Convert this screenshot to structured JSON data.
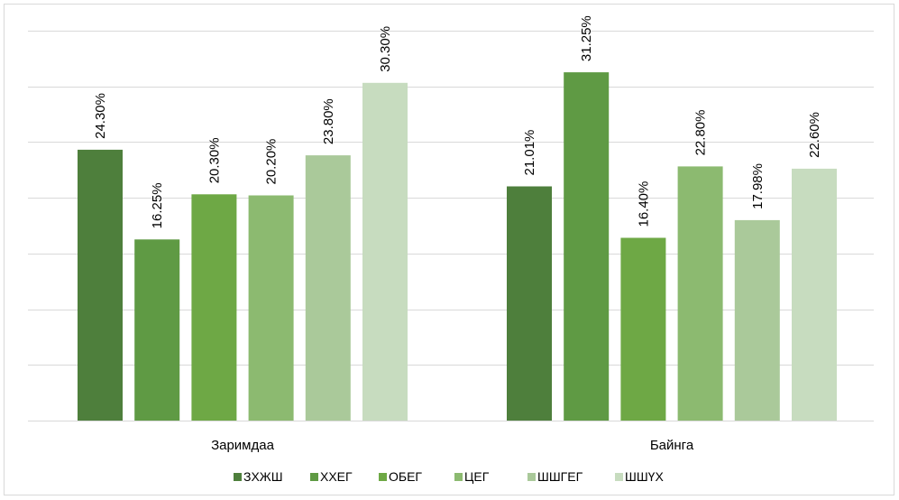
{
  "chart_data": {
    "type": "bar",
    "categories": [
      "Заримдаа",
      "Байнга"
    ],
    "series": [
      {
        "name": "ЗХЖШ",
        "values": [
          24.3,
          21.01
        ],
        "labels": [
          "24.30%",
          "21.01%"
        ]
      },
      {
        "name": "ХХЕГ",
        "values": [
          16.25,
          31.25
        ],
        "labels": [
          "16.25%",
          "31.25%"
        ]
      },
      {
        "name": "ОБЕГ",
        "values": [
          20.3,
          16.4
        ],
        "labels": [
          "20.30%",
          "16.40%"
        ]
      },
      {
        "name": "ЦЕГ",
        "values": [
          20.2,
          22.8
        ],
        "labels": [
          "20.20%",
          "22.80%"
        ]
      },
      {
        "name": "ШШГЕГ",
        "values": [
          23.8,
          17.98
        ],
        "labels": [
          "23.80%",
          "17.98%"
        ]
      },
      {
        "name": "ШШҮХ",
        "values": [
          30.3,
          22.6
        ],
        "labels": [
          "30.30%",
          "22.60%"
        ]
      }
    ],
    "colors": [
      "#4e7f3c",
      "#5f9a44",
      "#6ea845",
      "#8cba70",
      "#aac99a",
      "#c7dcbf"
    ],
    "ylim": [
      0,
      35
    ],
    "gridlines": [
      0,
      5,
      10,
      15,
      20,
      25,
      30,
      35
    ],
    "grid": true,
    "data_labels": true,
    "legend": "bottom",
    "title": "",
    "xlabel": "",
    "ylabel": ""
  }
}
